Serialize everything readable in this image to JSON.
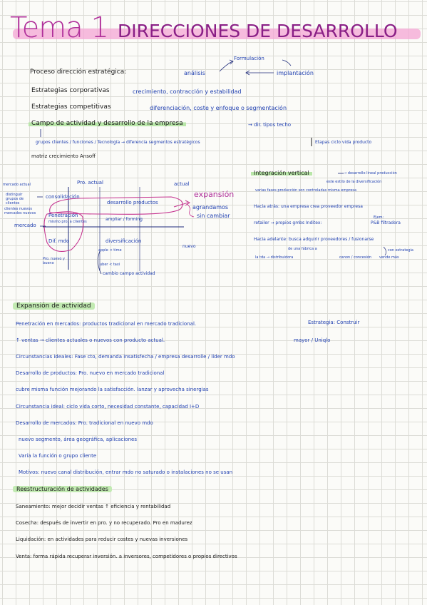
{
  "title": {
    "main": "Tema 1",
    "sub": "DIRECCIONES DE DESARROLLO"
  },
  "intro": {
    "formulacion": "Formulación",
    "proceso_label": "Proceso dirección estratégica:",
    "analisis": "análisis",
    "implantacion": "implantación",
    "estrategias_corp": "Estrategias corporativas",
    "estrategias_corp_value": "crecimiento, contracción y estabilidad",
    "estrategias_comp": "Estrategias competitivas",
    "estrategias_comp_value": "diferenciación, coste y enfoque o segmentación",
    "campo": "Campo de actividad y desarrollo de la empresa",
    "campo_tail": "→ dir. tipos techo",
    "grupos": "grupos clientes / funciones / Tecnología → diferencia segmentos estratégicos",
    "etapas": "Etapas ciclo vida producto",
    "matriz": "matriz crecimiento Ansoff"
  },
  "matrix": {
    "top_prod_actual": "Pro. actual",
    "top_actual": "actual",
    "left_mercado_actual": "mercado actual",
    "left_dif_grupos": "distinguir grupos de clientes",
    "left_cliente_nuevo": "clientes nuevos mercados nuevos",
    "left_mercado": "mercado",
    "consolidacion": "consolidación",
    "penetracion": "Penetración",
    "penetracion_sub": "mismo pro. a clientes",
    "desarrollo_productos": "desarrollo productos",
    "expansion": "expansión",
    "agrandamos": "agrandamos",
    "sin_cambiar": "sin cambiar",
    "espacio_forming": "ampliar / forming",
    "dif_mdo": "Dif. mdo",
    "diversificacion": "diversificación",
    "nuevo": "nuevo",
    "pro_nuevo_label": "Pro. nuevo",
    "cambio_arrow": "cambio",
    "apple_time": "apple < time",
    "uber": "uber < taxi",
    "cambio_campo": "cambio campo actividad",
    "pro_nuevo_y_bueno": "Pro. nuevo y bueno"
  },
  "integracion": {
    "title": "Integración vertical",
    "title_tail": "→ desarrollo lineal producción",
    "line2": "este estilo de la diversificación",
    "line3": "varias fases producción son controladas misma empresa",
    "hacia_atras": "Hacia atrás: una empresa crea proveedor empresa",
    "ejemplo_label": "Ejem:",
    "ejemplo_value": "P&B filtradora",
    "retailer": "retailer → propios gmbs   Inditex:",
    "hacia_adelante": "Hacia adelante: busca adquirir proveedores / fusionarse",
    "hacia_adelante_2": "de una fábrica a",
    "tiendas": "la tda → distribuidora",
    "canon": "canon / concesión",
    "vende_mas": "vende más",
    "estrategia_corp": "con estrategia"
  },
  "expansion_section": {
    "title": "Expansión de actividad",
    "line1": "Penetración en mercados: productos tradicional en mercado tradicional.",
    "line1_tail": "Estrategia: Construir",
    "line2": "↑ ventas → clientes actuales o nuevos con producto actual.",
    "line2_tail": "mayor / Uniqlo",
    "line3": "Circunstancias ideales: Fase cto, demanda insatisfecha / empresa desarrolle / líder mdo",
    "line4": "Desarrollo de productos: Pro. nuevo en mercado tradicional",
    "line5": "cubre misma función mejorando la satisfacción.    lanzar y aprovecha sinergias",
    "line6": "Circunstancia ideal: ciclo vida corto, necesidad constante, capacidad I+D",
    "line7": "Desarrollo de mercados: Pro. tradicional en nuevo mdo",
    "line8": "nuevo segmento, área geográfica, aplicaciones",
    "line9": "Varía la función o grupo cliente",
    "line10": "Motivos: nuevo canal distribución, entrar mdo no saturado o instalaciones no se usan"
  },
  "reestructuracion": {
    "title": "Reestructuración de actividades",
    "line1": "Saneamiento: mejor decidir ventas  ↑ eficiencia y rentabilidad",
    "line2": "Cosecha: después de invertir en pro. y no recuperado. Pro en madurez",
    "line3": "Liquidación: en actividades para reducir costes y nuevas inversiones",
    "line4": "Venta: forma rápida recuperar inversión. a inversores, competidores o propios directivos"
  },
  "colors": {
    "ink": "#1d2a7a",
    "title_pink": "#b0309a",
    "title_highlight": "#f4a6d4",
    "green_highlight": "#b8e6a8",
    "matrix_pink": "#c5338f",
    "grid": "#dcdcd6"
  }
}
